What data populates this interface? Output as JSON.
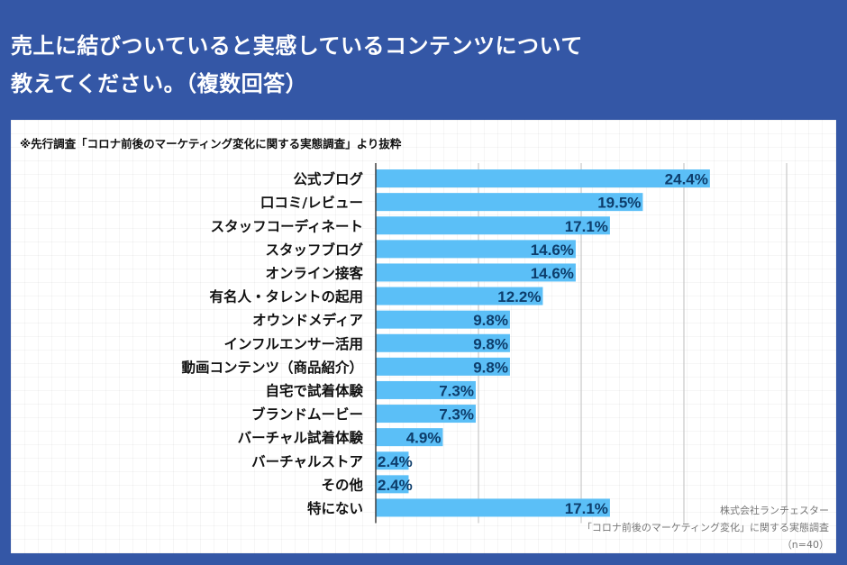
{
  "header": {
    "title_line1": "売上に結びついていると実感しているコンテンツについて",
    "title_line2": "教えてください。（複数回答）"
  },
  "note": "※先行調査「コロナ前後のマーケティング変化に関する実態調査」より抜粋",
  "footer": {
    "company": "株式会社ランチェスター",
    "survey": "「コロナ前後のマーケティング変化」に関する実態調査",
    "sample": "（n=40）"
  },
  "colors": {
    "background": "#3457a6",
    "bar": "#5bbff7",
    "value_label": "#0d3d6b",
    "category_label": "#111111",
    "gridline": "#c8c8c8"
  },
  "chart_data": {
    "type": "bar",
    "orientation": "horizontal",
    "title": "売上に結びついていると実感しているコンテンツについて教えてください。（複数回答）",
    "xlabel": "",
    "ylabel": "",
    "xlim": [
      0,
      30
    ],
    "gridlines": [
      7.5,
      15,
      22.5,
      30
    ],
    "grid": true,
    "unit": "%",
    "categories": [
      "公式ブログ",
      "口コミ/レビュー",
      "スタッフコーディネート",
      "スタッフブログ",
      "オンライン接客",
      "有名人・タレントの起用",
      "オウンドメディア",
      "インフルエンサー活用",
      "動画コンテンツ（商品紹介）",
      "自宅で試着体験",
      "ブランドムービー",
      "バーチャル試着体験",
      "バーチャルストア",
      "その他",
      "特にない"
    ],
    "values": [
      24.4,
      19.5,
      17.1,
      14.6,
      14.6,
      12.2,
      9.8,
      9.8,
      9.8,
      7.3,
      7.3,
      4.9,
      2.4,
      2.4,
      17.1
    ],
    "value_labels": [
      "24.4%",
      "19.5%",
      "17.1%",
      "14.6%",
      "14.6%",
      "12.2%",
      "9.8%",
      "9.8%",
      "9.8%",
      "7.3%",
      "7.3%",
      "4.9%",
      "2.4%",
      "2.4%",
      "17.1%"
    ]
  }
}
